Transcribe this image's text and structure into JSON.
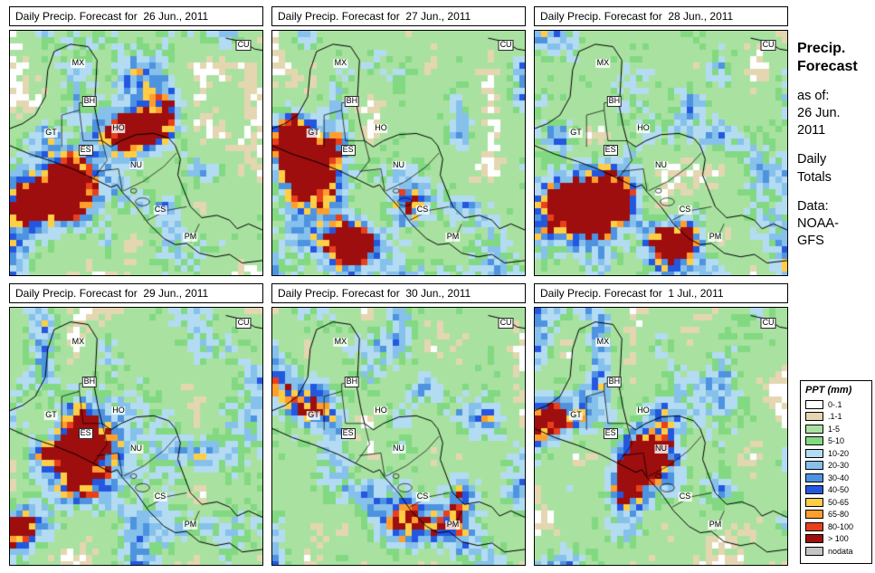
{
  "panels": [
    {
      "title": "Daily Precip. Forecast for  26 Jun., 2011"
    },
    {
      "title": "Daily Precip. Forecast for  27 Jun., 2011"
    },
    {
      "title": "Daily Precip. Forecast for  28 Jun., 2011"
    },
    {
      "title": "Daily Precip. Forecast for  29 Jun., 2011"
    },
    {
      "title": "Daily Precip. Forecast for  30 Jun., 2011"
    },
    {
      "title": "Daily Precip. Forecast for  1 Jul., 2011"
    }
  ],
  "map_labels": [
    "MX",
    "CU",
    "BH",
    "GT",
    "HO",
    "ES",
    "NU",
    "CS",
    "PM"
  ],
  "sidebar": {
    "title_line1": "Precip.",
    "title_line2": "Forecast",
    "as_of_label": "as of:",
    "as_of_line1": "26 Jun.",
    "as_of_line2": "2011",
    "totals_line1": "Daily",
    "totals_line2": "Totals",
    "data_label": "Data:",
    "source_line1": "NOAA-",
    "source_line2": "GFS"
  },
  "legend": {
    "title": "PPT (mm)",
    "items": [
      {
        "label": "0-.1",
        "color": "#FFFFFF"
      },
      {
        "label": ".1-1",
        "color": "#E3D6B1"
      },
      {
        "label": "1-5",
        "color": "#A9E2A0"
      },
      {
        "label": "5-10",
        "color": "#82D982"
      },
      {
        "label": "10-20",
        "color": "#B3DCF3"
      },
      {
        "label": "20-30",
        "color": "#86C1EC"
      },
      {
        "label": "30-40",
        "color": "#4E93E0"
      },
      {
        "label": "40-50",
        "color": "#2457E0"
      },
      {
        "label": "50-65",
        "color": "#FFCE45"
      },
      {
        "label": "65-80",
        "color": "#FF9E2E"
      },
      {
        "label": "80-100",
        "color": "#E8401C"
      },
      {
        "label": "> 100",
        "color": "#9E0E0E"
      },
      {
        "label": "nodata",
        "color": "#C4C4C4"
      }
    ]
  }
}
